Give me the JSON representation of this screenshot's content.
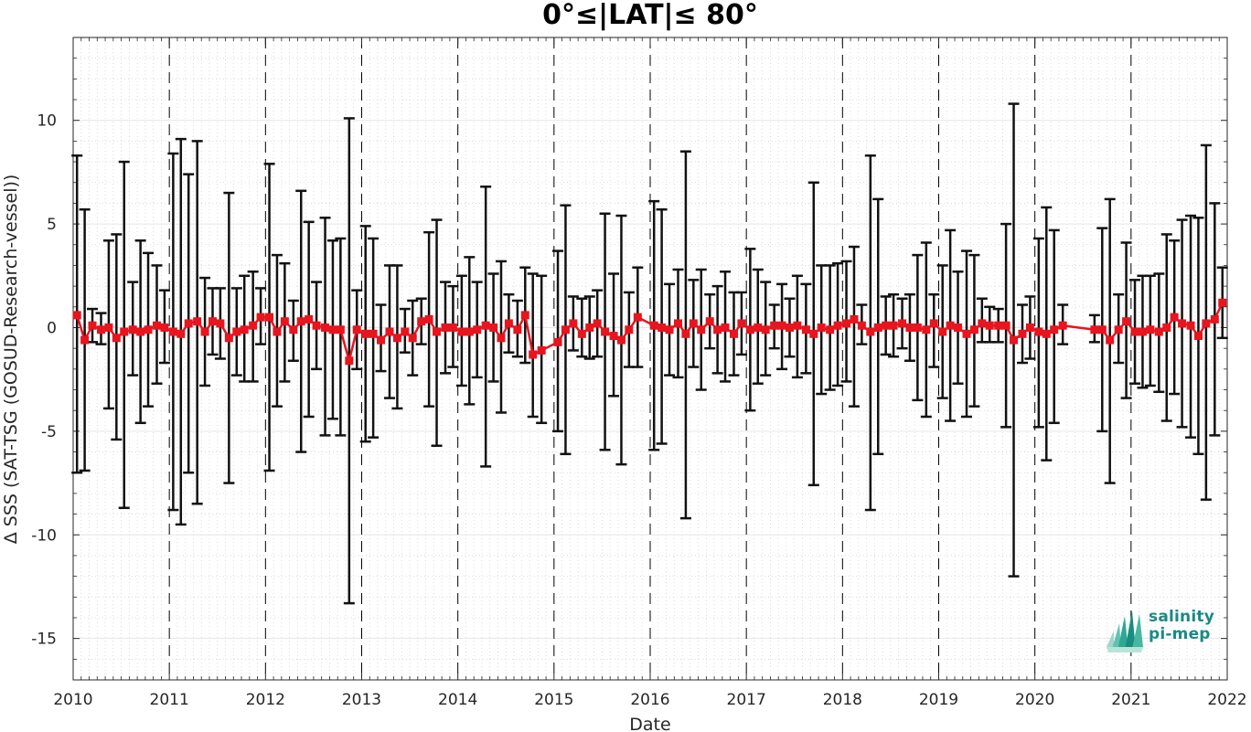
{
  "chart_data": {
    "type": "line",
    "title": "0°≤|LAT|≤ 80°",
    "xlabel": "Date",
    "ylabel": "Δ SSS (SAT-TSG (GOSUD-Research-vessel))",
    "xlim": [
      2010,
      2022
    ],
    "ylim": [
      -17,
      14
    ],
    "x_ticks": [
      "2010",
      "2011",
      "2012",
      "2013",
      "2014",
      "2015",
      "2016",
      "2017",
      "2018",
      "2019",
      "2020",
      "2021",
      "2022"
    ],
    "y_ticks": [
      "10",
      "5",
      "0",
      "-5",
      "-10",
      "-15"
    ],
    "grid": true,
    "year_separators": "dashed vertical lines at each year",
    "series": [
      {
        "color": "#e8141e",
        "marker": "square",
        "error_bar_color": "#111111",
        "points": [
          [
            2010.04,
            0.6,
            8.3,
            -7.0
          ],
          [
            2010.12,
            -0.6,
            5.7,
            -6.9
          ],
          [
            2010.2,
            0.1,
            0.9,
            -0.7
          ],
          [
            2010.29,
            -0.1,
            0.7,
            -0.8
          ],
          [
            2010.37,
            0.0,
            4.2,
            -3.9
          ],
          [
            2010.45,
            -0.5,
            4.5,
            -5.4
          ],
          [
            2010.53,
            -0.2,
            8.0,
            -8.7
          ],
          [
            2010.62,
            -0.1,
            2.2,
            -2.3
          ],
          [
            2010.7,
            -0.2,
            4.2,
            -4.6
          ],
          [
            2010.78,
            -0.1,
            3.6,
            -3.8
          ],
          [
            2010.87,
            0.1,
            3.0,
            -2.7
          ],
          [
            2010.95,
            0.0,
            1.8,
            -1.7
          ],
          [
            2011.04,
            -0.2,
            8.4,
            -8.8
          ],
          [
            2011.12,
            -0.3,
            9.1,
            -9.5
          ],
          [
            2011.2,
            0.2,
            7.4,
            -7.0
          ],
          [
            2011.29,
            0.3,
            9.0,
            -8.5
          ],
          [
            2011.37,
            -0.2,
            2.4,
            -2.8
          ],
          [
            2011.45,
            0.3,
            1.9,
            -1.3
          ],
          [
            2011.53,
            0.2,
            1.9,
            -1.5
          ],
          [
            2011.62,
            -0.5,
            6.5,
            -7.5
          ],
          [
            2011.7,
            -0.2,
            1.9,
            -2.3
          ],
          [
            2011.78,
            -0.1,
            2.5,
            -2.6
          ],
          [
            2011.87,
            0.1,
            2.7,
            -2.6
          ],
          [
            2011.95,
            0.5,
            1.9,
            -0.8
          ],
          [
            2012.04,
            0.5,
            7.9,
            -6.9
          ],
          [
            2012.12,
            -0.2,
            3.5,
            -3.8
          ],
          [
            2012.2,
            0.3,
            3.1,
            -2.6
          ],
          [
            2012.29,
            -0.1,
            1.3,
            -1.6
          ],
          [
            2012.37,
            0.3,
            6.6,
            -6.0
          ],
          [
            2012.45,
            0.4,
            5.1,
            -4.3
          ],
          [
            2012.53,
            0.1,
            2.2,
            -2.0
          ],
          [
            2012.62,
            0.0,
            5.3,
            -5.2
          ],
          [
            2012.7,
            -0.1,
            4.2,
            -4.4
          ],
          [
            2012.78,
            -0.1,
            4.3,
            -5.2
          ],
          [
            2012.87,
            -1.6,
            10.1,
            -13.3
          ],
          [
            2012.95,
            -0.1,
            1.8,
            -2.0
          ],
          [
            2013.04,
            -0.3,
            4.9,
            -5.5
          ],
          [
            2013.12,
            -0.3,
            4.3,
            -5.3
          ],
          [
            2013.2,
            -0.6,
            1.1,
            -2.1
          ],
          [
            2013.29,
            -0.2,
            3.0,
            -3.4
          ],
          [
            2013.37,
            -0.5,
            3.0,
            -3.9
          ],
          [
            2013.45,
            -0.2,
            0.9,
            -1.2
          ],
          [
            2013.53,
            -0.5,
            1.3,
            -2.3
          ],
          [
            2013.62,
            0.3,
            1.4,
            -0.8
          ],
          [
            2013.7,
            0.4,
            4.6,
            -3.8
          ],
          [
            2013.78,
            -0.2,
            5.2,
            -5.7
          ],
          [
            2013.87,
            0.0,
            2.2,
            -2.2
          ],
          [
            2013.95,
            0.0,
            2.0,
            -1.9
          ],
          [
            2014.04,
            -0.2,
            2.5,
            -2.8
          ],
          [
            2014.12,
            -0.2,
            3.4,
            -3.7
          ],
          [
            2014.2,
            -0.1,
            2.2,
            -2.4
          ],
          [
            2014.29,
            0.1,
            6.8,
            -6.7
          ],
          [
            2014.37,
            0.0,
            2.6,
            -2.6
          ],
          [
            2014.45,
            -0.5,
            3.2,
            -4.1
          ],
          [
            2014.53,
            0.2,
            1.6,
            -1.2
          ],
          [
            2014.62,
            -0.1,
            1.3,
            -1.4
          ],
          [
            2014.7,
            0.6,
            2.9,
            -1.7
          ],
          [
            2014.78,
            -1.3,
            2.6,
            -4.3
          ],
          [
            2014.87,
            -1.1,
            2.5,
            -4.6
          ],
          [
            2015.04,
            -0.7,
            3.7,
            -5.0
          ],
          [
            2015.12,
            -0.1,
            5.9,
            -6.1
          ],
          [
            2015.2,
            0.2,
            1.5,
            -1.1
          ],
          [
            2015.29,
            -0.3,
            1.4,
            -1.4
          ],
          [
            2015.37,
            0.0,
            1.5,
            -1.5
          ],
          [
            2015.45,
            0.2,
            1.8,
            -1.4
          ],
          [
            2015.53,
            -0.2,
            5.5,
            -5.9
          ],
          [
            2015.62,
            -0.4,
            2.6,
            -3.3
          ],
          [
            2015.7,
            -0.6,
            5.4,
            -6.6
          ],
          [
            2015.78,
            -0.1,
            1.7,
            -1.9
          ],
          [
            2015.87,
            0.5,
            2.9,
            -1.9
          ],
          [
            2016.04,
            0.1,
            6.1,
            -5.9
          ],
          [
            2016.12,
            0.0,
            5.7,
            -5.6
          ],
          [
            2016.2,
            -0.1,
            2.1,
            -2.3
          ],
          [
            2016.29,
            0.2,
            2.8,
            -2.4
          ],
          [
            2016.37,
            -0.3,
            8.5,
            -9.2
          ],
          [
            2016.45,
            0.2,
            2.3,
            -1.9
          ],
          [
            2016.53,
            -0.1,
            2.8,
            -3.0
          ],
          [
            2016.62,
            0.3,
            1.6,
            -1.0
          ],
          [
            2016.7,
            -0.1,
            2.0,
            -2.2
          ],
          [
            2016.78,
            0.0,
            2.7,
            -2.6
          ],
          [
            2016.87,
            -0.3,
            1.7,
            -2.3
          ],
          [
            2016.95,
            0.2,
            1.7,
            -1.3
          ],
          [
            2017.04,
            -0.1,
            3.8,
            -4.0
          ],
          [
            2017.12,
            0.0,
            2.8,
            -2.7
          ],
          [
            2017.2,
            -0.1,
            2.2,
            -2.3
          ],
          [
            2017.29,
            0.1,
            1.1,
            -1.0
          ],
          [
            2017.37,
            0.1,
            2.1,
            -2.0
          ],
          [
            2017.45,
            0.0,
            1.4,
            -1.4
          ],
          [
            2017.53,
            0.1,
            2.5,
            -2.4
          ],
          [
            2017.62,
            -0.1,
            2.1,
            -2.2
          ],
          [
            2017.7,
            -0.3,
            7.0,
            -7.6
          ],
          [
            2017.78,
            0.0,
            3.0,
            -3.2
          ],
          [
            2017.87,
            -0.1,
            3.0,
            -3.0
          ],
          [
            2017.95,
            0.1,
            3.1,
            -2.8
          ],
          [
            2018.04,
            0.2,
            3.2,
            -2.6
          ],
          [
            2018.12,
            0.4,
            3.9,
            -3.8
          ],
          [
            2018.2,
            0.1,
            1.1,
            -0.8
          ],
          [
            2018.29,
            -0.2,
            8.3,
            -8.8
          ],
          [
            2018.37,
            0.0,
            6.2,
            -6.1
          ],
          [
            2018.45,
            0.1,
            1.5,
            -1.3
          ],
          [
            2018.53,
            0.1,
            1.6,
            -1.4
          ],
          [
            2018.62,
            0.2,
            1.4,
            -1.0
          ],
          [
            2018.7,
            0.0,
            1.6,
            -1.6
          ],
          [
            2018.78,
            0.0,
            3.5,
            -3.5
          ],
          [
            2018.87,
            -0.1,
            4.1,
            -4.3
          ],
          [
            2018.95,
            0.2,
            1.6,
            -1.9
          ],
          [
            2019.04,
            -0.2,
            3.0,
            -3.4
          ],
          [
            2019.12,
            0.1,
            4.7,
            -4.5
          ],
          [
            2019.2,
            0.0,
            2.7,
            -2.7
          ],
          [
            2019.29,
            -0.3,
            3.7,
            -4.3
          ],
          [
            2019.37,
            -0.1,
            3.5,
            -3.8
          ],
          [
            2019.45,
            0.2,
            1.4,
            -0.7
          ],
          [
            2019.53,
            0.1,
            1.0,
            -0.7
          ],
          [
            2019.62,
            0.1,
            0.9,
            -0.7
          ],
          [
            2019.7,
            0.1,
            5.0,
            -4.8
          ],
          [
            2019.78,
            -0.6,
            10.8,
            -12.0
          ],
          [
            2019.87,
            -0.3,
            1.1,
            -1.7
          ],
          [
            2019.95,
            0.0,
            1.5,
            -1.5
          ],
          [
            2020.04,
            -0.2,
            4.3,
            -4.8
          ],
          [
            2020.12,
            -0.3,
            5.8,
            -6.4
          ],
          [
            2020.2,
            -0.1,
            4.7,
            -4.6
          ],
          [
            2020.29,
            0.1,
            1.1,
            -0.8
          ],
          [
            2020.62,
            -0.1,
            0.6,
            -0.7
          ],
          [
            2020.7,
            -0.1,
            4.8,
            -5.0
          ],
          [
            2020.78,
            -0.6,
            6.2,
            -7.5
          ],
          [
            2020.87,
            -0.1,
            1.6,
            -1.7
          ],
          [
            2020.95,
            0.3,
            4.1,
            -3.4
          ],
          [
            2021.04,
            -0.2,
            2.3,
            -2.7
          ],
          [
            2021.12,
            -0.2,
            2.5,
            -2.9
          ],
          [
            2021.2,
            -0.1,
            2.5,
            -2.8
          ],
          [
            2021.29,
            -0.2,
            2.6,
            -3.1
          ],
          [
            2021.37,
            0.0,
            4.5,
            -4.5
          ],
          [
            2021.45,
            0.5,
            4.2,
            -3.2
          ],
          [
            2021.53,
            0.2,
            5.2,
            -4.8
          ],
          [
            2021.62,
            0.1,
            5.4,
            -5.3
          ],
          [
            2021.7,
            -0.4,
            5.3,
            -6.1
          ],
          [
            2021.78,
            0.2,
            8.8,
            -8.3
          ],
          [
            2021.87,
            0.4,
            6.0,
            -5.2
          ],
          [
            2021.95,
            1.2,
            2.9,
            -0.5
          ]
        ]
      }
    ],
    "logo": {
      "line1": "salinity",
      "line2": "pi-mep"
    }
  }
}
